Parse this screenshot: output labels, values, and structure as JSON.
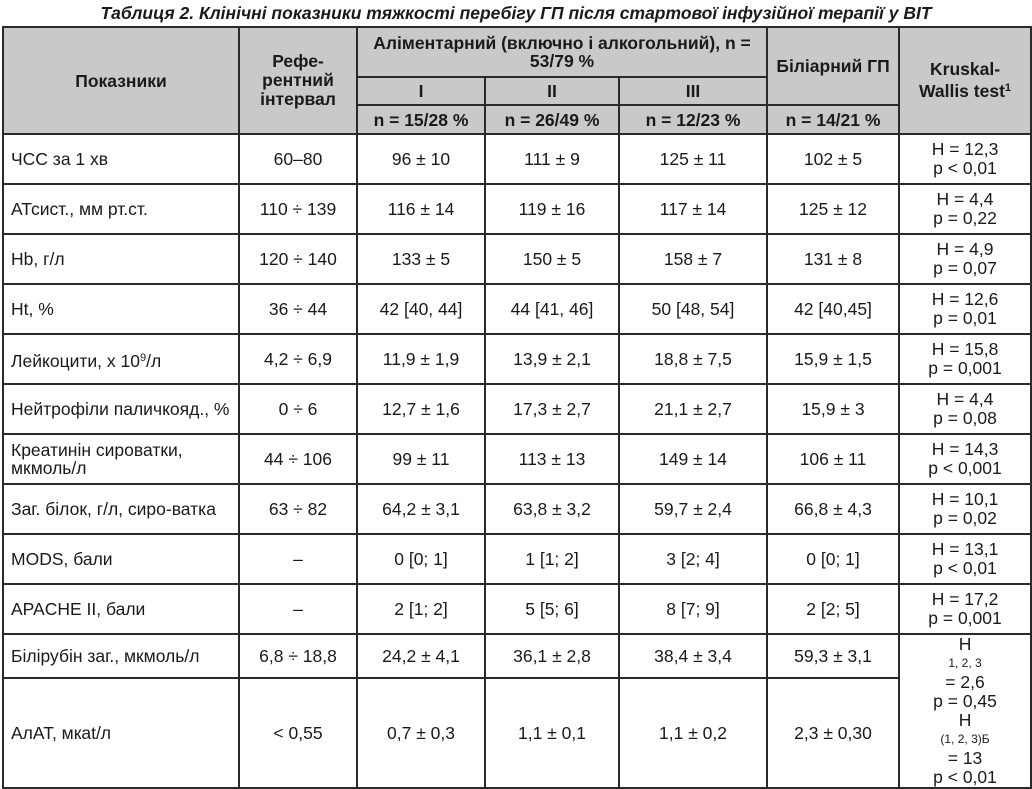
{
  "caption": "Таблиця 2. Клінічні показники тяжкості перебігу ГП після стартової інфузійної терапії у ВІТ",
  "header": {
    "col_param": "Показники",
    "col_ref": "Рефе-рентний інтервал",
    "col_alimentary": "Аліментарний (включно і алкогольний), n = 53/79 %",
    "col_biliary": "Біліарний ГП",
    "col_test": "Kruskal-Wallis test",
    "col_test_sup": "1",
    "grades": [
      "I",
      "II",
      "III"
    ],
    "n_values": [
      "n = 15/28 %",
      "n = 26/49 %",
      "n = 12/23 %",
      "n = 14/21 %"
    ]
  },
  "rows": [
    {
      "name": "ЧСС за 1 хв",
      "ref": "60–80",
      "g1": "96 ± 10",
      "g2": "111 ± 9",
      "g3": "125 ± 11",
      "bil": "102 ± 5",
      "h": "H = 12,3",
      "p": "p < 0,01"
    },
    {
      "name": "АТсист., мм рт.ст.",
      "ref": "110 ÷ 139",
      "g1": "116 ± 14",
      "g2": "119 ± 16",
      "g3": "117 ± 14",
      "bil": "125 ± 12",
      "h": "H = 4,4",
      "p": "p = 0,22"
    },
    {
      "name": "Hb, г/л",
      "ref": "120 ÷ 140",
      "g1": "133 ± 5",
      "g2": "150 ± 5",
      "g3": "158 ± 7",
      "bil": "131 ± 8",
      "h": "H = 4,9",
      "p": "p = 0,07"
    },
    {
      "name": "Ht, %",
      "ref": "36 ÷ 44",
      "g1": "42 [40, 44]",
      "g2": "44 [41, 46]",
      "g3": "50 [48, 54]",
      "bil": "42 [40,45]",
      "h": "H = 12,6",
      "p": "p = 0,01"
    },
    {
      "name_pre": "Лейкоцити, х 10",
      "name_sup": "9",
      "name_post": "/л",
      "ref": "4,2 ÷ 6,9",
      "g1": "11,9 ± 1,9",
      "g2": "13,9 ± 2,1",
      "g3": "18,8 ± 7,5",
      "bil": "15,9 ± 1,5",
      "h": "H = 15,8",
      "p": "p = 0,001"
    },
    {
      "name": "Нейтрофіли паличкояд., %",
      "ref": "0 ÷ 6",
      "g1": "12,7 ± 1,6",
      "g2": "17,3 ± 2,7",
      "g3": "21,1 ± 2,7",
      "bil": "15,9 ± 3",
      "h": "H = 4,4",
      "p": "p = 0,08"
    },
    {
      "name": "Креатинін сироватки, мкмоль/л",
      "ref": "44 ÷ 106",
      "g1": "99 ± 11",
      "g2": "113 ± 13",
      "g3": "149 ± 14",
      "bil": "106 ± 11",
      "h": "H = 14,3",
      "p": "p < 0,001"
    },
    {
      "name": "Заг. білок, г/л, сиро-ватка",
      "ref": "63 ÷ 82",
      "g1": "64,2 ± 3,1",
      "g2": "63,8 ± 3,2",
      "g3": "59,7 ± 2,4",
      "bil": "66,8 ± 4,3",
      "h": "H = 10,1",
      "p": "p = 0,02"
    },
    {
      "name": "MODS, бали",
      "ref": "–",
      "g1": "0 [0; 1]",
      "g2": "1 [1; 2]",
      "g3": "3 [2; 4]",
      "bil": "0 [0; 1]",
      "h": "H = 13,1",
      "p": "p < 0,01"
    },
    {
      "name": "APACHE II, бали",
      "ref": "–",
      "g1": "2 [1; 2]",
      "g2": "5 [5; 6]",
      "g3": "8 [7; 9]",
      "bil": "2 [2; 5]",
      "h": "H = 17,2",
      "p": "p = 0,001"
    },
    {
      "name": "Білірубін заг., мкмоль/л",
      "ref": "6,8 ÷ 18,8",
      "g1": "24,2 ± 4,1",
      "g2": "36,1 ± 2,8",
      "g3": "38,4 ± 3,4",
      "bil": "59,3 ± 3,1"
    },
    {
      "name": "АлАТ, мкat/л",
      "ref": "< 0,55",
      "g1": "0,7 ± 0,3",
      "g2": "1,1 ± 0,1",
      "g3": "1,1 ± 0,2",
      "bil": "2,3 ± 0,30"
    }
  ],
  "merged_test": {
    "h1_main": "H",
    "h1_sub": "1, 2, 3",
    "h1_val": " = 2,6",
    "p1": "p = 0,45",
    "h2_main": "H",
    "h2_sub": "(1, 2, 3)Б",
    "h2_val": " = 13",
    "p2": "p < 0,01"
  }
}
